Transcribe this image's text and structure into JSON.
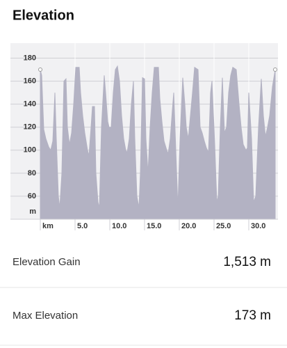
{
  "header": {
    "title": "Elevation"
  },
  "chart_data": {
    "type": "area",
    "x_label": "km",
    "y_label": "m",
    "xlim": [
      0,
      33.8
    ],
    "xticks": [
      {
        "value": 5,
        "label": "5.0"
      },
      {
        "value": 10,
        "label": "10.0"
      },
      {
        "value": 15,
        "label": "15.0"
      },
      {
        "value": 20,
        "label": "20.0"
      },
      {
        "value": 25,
        "label": "25.0"
      },
      {
        "value": 30,
        "label": "30.0"
      }
    ],
    "ylim": [
      40,
      193
    ],
    "yticks": [
      60,
      80,
      100,
      120,
      140,
      160,
      180
    ],
    "grid": true,
    "color": "#b3b2c3",
    "x": [
      0,
      0.2,
      0.5,
      0.8,
      1.2,
      1.5,
      1.8,
      2.1,
      2.3,
      2.6,
      2.8,
      3.1,
      3.4,
      3.7,
      3.9,
      4.2,
      4.5,
      4.8,
      5.1,
      5.6,
      5.8,
      6.1,
      6.4,
      6.8,
      7.0,
      7.3,
      7.5,
      7.8,
      8.0,
      8.3,
      8.5,
      8.8,
      9.2,
      9.4,
      9.7,
      9.9,
      10.2,
      10.5,
      10.8,
      11.1,
      11.4,
      11.7,
      12.0,
      12.3,
      12.5,
      12.8,
      13.1,
      13.4,
      13.6,
      13.9,
      14.2,
      14.4,
      14.7,
      15.0,
      15.2,
      15.5,
      15.8,
      16.1,
      16.4,
      17.0,
      17.2,
      17.5,
      17.8,
      18.2,
      18.4,
      18.7,
      19.0,
      19.2,
      19.5,
      19.8,
      20.1,
      20.5,
      20.8,
      21.0,
      21.3,
      21.6,
      21.9,
      22.2,
      22.7,
      23.0,
      23.3,
      23.6,
      23.9,
      24.2,
      24.5,
      24.7,
      25.1,
      25.4,
      25.6,
      25.9,
      26.2,
      26.5,
      26.8,
      27.1,
      27.4,
      27.7,
      28.2,
      28.6,
      28.9,
      29.2,
      29.6,
      29.8,
      30.0,
      30.4,
      30.7,
      31.0,
      31.4,
      31.8,
      32.1,
      32.4,
      32.7,
      33.0,
      33.4,
      33.8
    ],
    "values": [
      170,
      165,
      118,
      110,
      103,
      100,
      108,
      150,
      110,
      60,
      50,
      80,
      160,
      162,
      120,
      105,
      115,
      140,
      172,
      172,
      150,
      130,
      115,
      100,
      95,
      120,
      138,
      138,
      80,
      55,
      50,
      120,
      165,
      150,
      125,
      120,
      120,
      150,
      170,
      173,
      160,
      130,
      110,
      100,
      98,
      110,
      140,
      160,
      110,
      60,
      50,
      80,
      163,
      162,
      110,
      80,
      120,
      150,
      172,
      172,
      145,
      125,
      108,
      100,
      97,
      110,
      135,
      150,
      100,
      50,
      110,
      163,
      140,
      120,
      110,
      130,
      150,
      172,
      170,
      120,
      115,
      108,
      102,
      98,
      150,
      160,
      105,
      55,
      60,
      120,
      163,
      115,
      120,
      150,
      165,
      172,
      170,
      140,
      120,
      105,
      100,
      102,
      150,
      110,
      55,
      60,
      120,
      162,
      130,
      112,
      120,
      130,
      155,
      170
    ]
  },
  "stats": [
    {
      "label": "Elevation Gain",
      "value": "1,513 m"
    },
    {
      "label": "Max Elevation",
      "value": "173 m"
    }
  ]
}
